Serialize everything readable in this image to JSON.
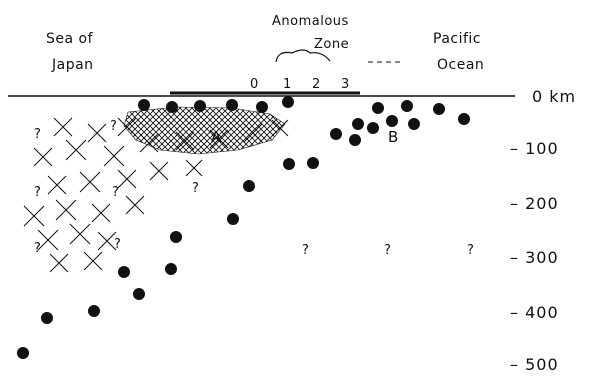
{
  "labels": {
    "sea_of": "Sea of",
    "japan": "Japan",
    "anomalous": "Anomalous",
    "zone": "Zone",
    "pacific": "Pacific",
    "ocean": "Ocean",
    "region_a": "A",
    "region_b": "B",
    "unknown": "?"
  },
  "scale_marks": [
    "0",
    "1",
    "2",
    "3"
  ],
  "depth_axis": {
    "unit": "km",
    "ticks": [
      "0 km",
      "– 100",
      "– 200",
      "– 300",
      "– 400",
      "– 500"
    ]
  }
}
